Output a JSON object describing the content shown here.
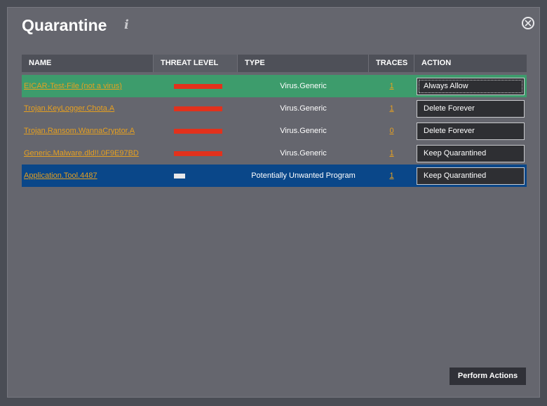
{
  "window": {
    "title": "Quarantine",
    "info_glyph": "i"
  },
  "table": {
    "headers": {
      "name": "NAME",
      "threat_level": "THREAT LEVEL",
      "type": "TYPE",
      "traces": "TRACES",
      "action": "ACTION"
    },
    "rows": [
      {
        "name": "EICAR-Test-File (not a virus)",
        "threat_level": "high",
        "type": "Virus.Generic",
        "traces": "1",
        "action": "Always Allow"
      },
      {
        "name": "Trojan.KeyLogger.Chota.A",
        "threat_level": "high",
        "type": "Virus.Generic",
        "traces": "1",
        "action": "Delete Forever"
      },
      {
        "name": "Trojan.Ransom.WannaCryptor.A",
        "threat_level": "high",
        "type": "Virus.Generic",
        "traces": "0",
        "action": "Delete Forever"
      },
      {
        "name": "Generic.Malware.dld!!.0F9E97BD",
        "threat_level": "high",
        "type": "Virus.Generic",
        "traces": "1",
        "action": "Keep Quarantined"
      },
      {
        "name": "Application.Tool.4487",
        "threat_level": "low",
        "type": "Potentially Unwanted Program",
        "traces": "1",
        "action": "Keep Quarantined"
      }
    ]
  },
  "footer": {
    "perform_label": "Perform Actions"
  },
  "colors": {
    "row_highlight_green": "#3d9c6c",
    "row_selected_blue": "#0a4789",
    "threat_high": "#e2311c",
    "threat_low": "#e8e8ea",
    "link": "#e6a020"
  }
}
